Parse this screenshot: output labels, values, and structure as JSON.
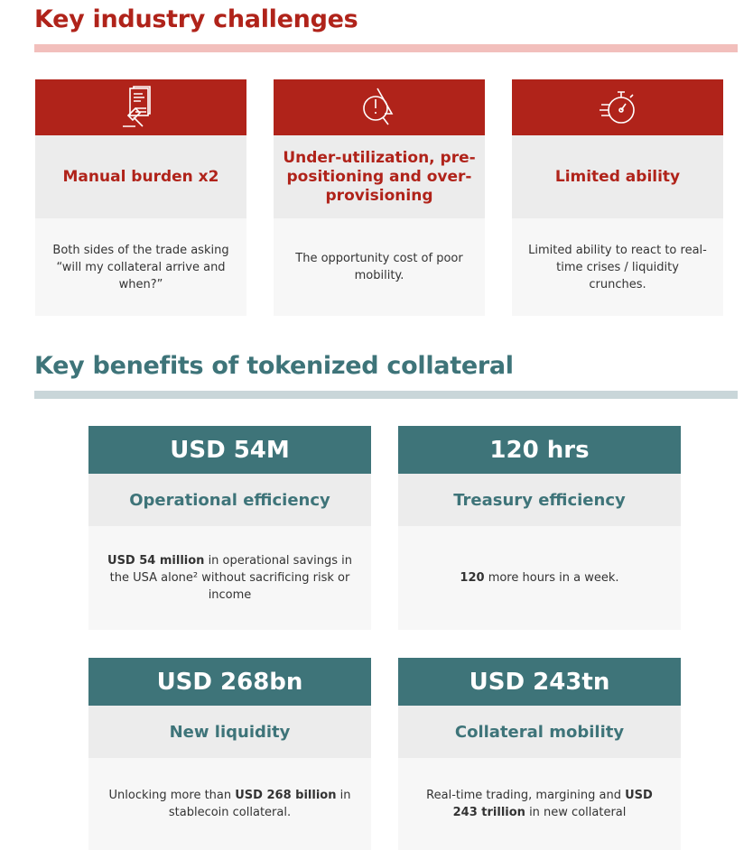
{
  "challenges": {
    "title": "Key industry challenges",
    "cards": [
      {
        "icon": "legal-document-gavel-icon",
        "title": "Manual burden x2",
        "body": "Both sides of the trade asking “will my collateral arrive and when?”"
      },
      {
        "icon": "warning-magnifier-icon",
        "title": "Under-utilization, pre-positioning and over-provisioning",
        "body": "The opportunity cost of poor mobility."
      },
      {
        "icon": "stopwatch-icon",
        "title": "Limited ability",
        "body": "Limited ability to react to real-time crises / liquidity crunches."
      }
    ]
  },
  "benefits": {
    "title": "Key benefits of tokenized collateral",
    "cards": [
      {
        "value": "USD 54M",
        "title": "Operational efficiency",
        "body_bold": "USD 54 million",
        "body_rest": " in operational savings in the USA alone² without sacrificing risk or income"
      },
      {
        "value": "120 hrs",
        "title": "Treasury efficiency",
        "body_bold": "120",
        "body_rest": " more hours in a week."
      },
      {
        "value": "USD 268bn",
        "title": "New liquidity",
        "body_pre": "Unlocking more than ",
        "body_bold": "USD 268 billion",
        "body_rest": " in stablecoin collateral."
      },
      {
        "value": "USD 243tn",
        "title": "Collateral mobility",
        "body_pre": "Real-time trading, margining and ",
        "body_bold": "USD 243 trillion",
        "body_rest": " in new collateral"
      }
    ]
  },
  "colors": {
    "red": "#b0231a",
    "teal": "#3e7479"
  }
}
